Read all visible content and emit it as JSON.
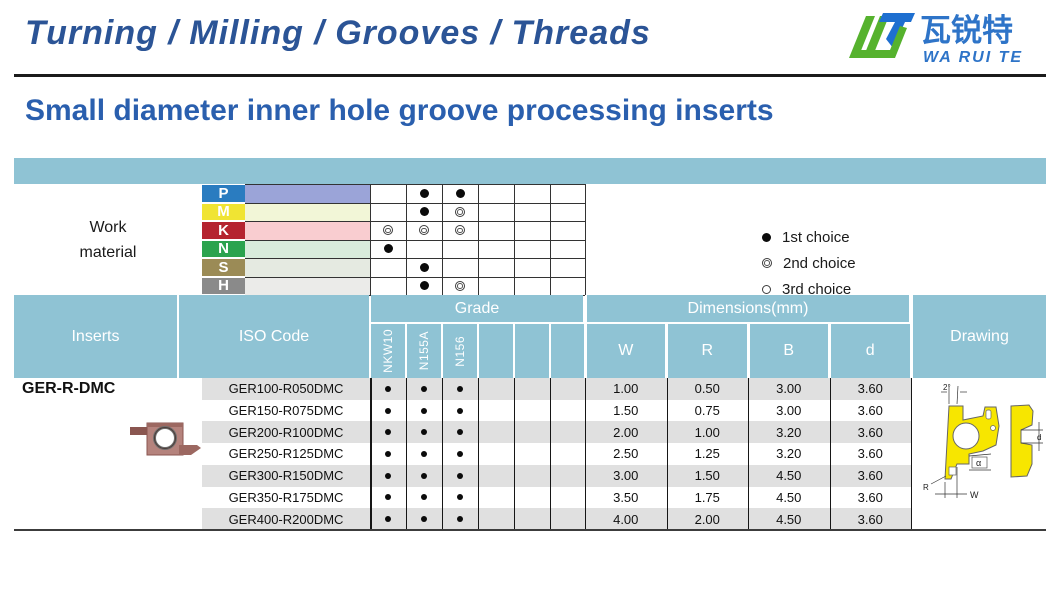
{
  "header": {
    "title": "Turning / Milling / Grooves / Threads",
    "logo": {
      "cn": "瓦锐特",
      "en": "WA RUI TE"
    }
  },
  "page_title": "Small diameter inner hole groove processing inserts",
  "work_material": {
    "label_line1": "Work",
    "label_line2": "material",
    "rows": [
      {
        "code": "P",
        "tab_color": "#2a7cc0",
        "band_color": "#9ba4d8",
        "marks": [
          "",
          "filled",
          "filled",
          "",
          "",
          ""
        ]
      },
      {
        "code": "M",
        "tab_color": "#f0e433",
        "band_color": "#f2f6d7",
        "marks": [
          "",
          "filled",
          "double",
          "",
          "",
          ""
        ]
      },
      {
        "code": "K",
        "tab_color": "#b5232f",
        "band_color": "#f9cdd0",
        "marks": [
          "double",
          "double",
          "double",
          "",
          "",
          ""
        ]
      },
      {
        "code": "N",
        "tab_color": "#2ba34e",
        "band_color": "#d9ecdc",
        "marks": [
          "filled",
          "",
          "",
          "",
          "",
          ""
        ]
      },
      {
        "code": "S",
        "tab_color": "#9b8b56",
        "band_color": "#e5eae1",
        "marks": [
          "",
          "filled",
          "",
          "",
          "",
          ""
        ]
      },
      {
        "code": "H",
        "tab_color": "#8a8a8a",
        "band_color": "#ebebe9",
        "marks": [
          "",
          "filled",
          "double",
          "",
          "",
          ""
        ]
      }
    ]
  },
  "legend": [
    {
      "mark": "filled",
      "label": "1st choice"
    },
    {
      "mark": "double",
      "label": "2nd choice"
    },
    {
      "mark": "open",
      "label": "3rd choice"
    }
  ],
  "table": {
    "inserts_header": "Inserts",
    "iso_header": "ISO Code",
    "grade_header": "Grade",
    "grade_columns": [
      "NKW10",
      "N155A",
      "N156",
      "",
      "",
      ""
    ],
    "dimensions_header": "Dimensions(mm)",
    "dimension_columns": [
      "W",
      "R",
      "B",
      "d"
    ],
    "drawing_header": "Drawing",
    "insert_name": "GER-R-DMC",
    "rows": [
      {
        "iso": "GER100-R050DMC",
        "grades": [
          "filled",
          "filled",
          "filled",
          "",
          "",
          ""
        ],
        "dims": [
          "1.00",
          "0.50",
          "3.00",
          "3.60"
        ]
      },
      {
        "iso": "GER150-R075DMC",
        "grades": [
          "filled",
          "filled",
          "filled",
          "",
          "",
          ""
        ],
        "dims": [
          "1.50",
          "0.75",
          "3.00",
          "3.60"
        ]
      },
      {
        "iso": "GER200-R100DMC",
        "grades": [
          "filled",
          "filled",
          "filled",
          "",
          "",
          ""
        ],
        "dims": [
          "2.00",
          "1.00",
          "3.20",
          "3.60"
        ]
      },
      {
        "iso": "GER250-R125DMC",
        "grades": [
          "filled",
          "filled",
          "filled",
          "",
          "",
          ""
        ],
        "dims": [
          "2.50",
          "1.25",
          "3.20",
          "3.60"
        ]
      },
      {
        "iso": "GER300-R150DMC",
        "grades": [
          "filled",
          "filled",
          "filled",
          "",
          "",
          ""
        ],
        "dims": [
          "3.00",
          "1.50",
          "4.50",
          "3.60"
        ]
      },
      {
        "iso": "GER350-R175DMC",
        "grades": [
          "filled",
          "filled",
          "filled",
          "",
          "",
          ""
        ],
        "dims": [
          "3.50",
          "1.75",
          "4.50",
          "3.60"
        ]
      },
      {
        "iso": "GER400-R200DMC",
        "grades": [
          "filled",
          "filled",
          "filled",
          "",
          "",
          ""
        ],
        "dims": [
          "4.00",
          "2.00",
          "4.50",
          "3.60"
        ]
      }
    ]
  },
  "drawing_labels": {
    "angle": "2°",
    "alpha": "α",
    "r": "R",
    "w": "W",
    "d": "d"
  },
  "colors": {
    "teal": "#8fc3d4",
    "header_blue": "#2b5496",
    "title_blue": "#2a5fae",
    "row_gray": "#e0e0e0",
    "logo_green": "#56b22e",
    "logo_blue": "#1e6fd0",
    "logo_text_blue": "#2e74c8",
    "drawing_yellow": "#f7e600",
    "insert_copper": "#b5837d"
  }
}
